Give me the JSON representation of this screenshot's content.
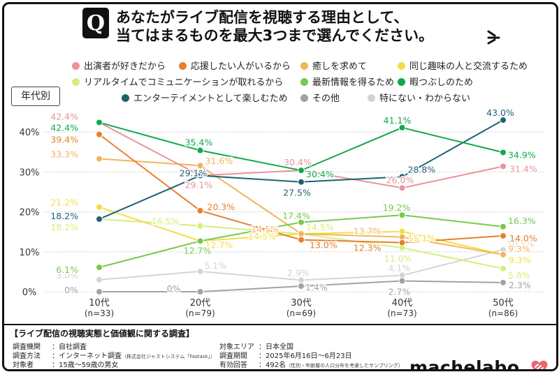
{
  "title": {
    "q_mark": "Q",
    "line1": "あなたがライブ配信を視聴する理由として、",
    "line2": "当てはまるものを最大3つまで選んでください。"
  },
  "badge": "年代別",
  "legend": [
    {
      "label": "出演者が好きだから",
      "color": "#e8949a"
    },
    {
      "label": "応援したい人がいるから",
      "color": "#e87f2e"
    },
    {
      "label": "癒しを求めて",
      "color": "#f2b45a"
    },
    {
      "label": "同じ趣味の人と交流するため",
      "color": "#f5dc45"
    },
    {
      "label": "リアルタイムでコミュニケーションが取れるから",
      "color": "#d4ef7a"
    },
    {
      "label": "最新情報を得るため",
      "color": "#77c94a"
    },
    {
      "label": "暇つぶしのため",
      "color": "#12a84a"
    },
    {
      "label": "エンターテイメントとして楽しむため",
      "color": "#1e6272"
    },
    {
      "label": "その他",
      "color": "#a2a2a2"
    },
    {
      "label": "特にない・わからない",
      "color": "#d4d4d4"
    }
  ],
  "chart_data": {
    "type": "line",
    "categories": [
      "10代",
      "20代",
      "30代",
      "40代",
      "50代"
    ],
    "category_sublabels": [
      "(n=33)",
      "(n=79)",
      "(n=69)",
      "(n=73)",
      "(n=86)"
    ],
    "ylim": [
      0,
      45
    ],
    "yticks": [
      0,
      10,
      20,
      30,
      40
    ],
    "ytick_labels": [
      "0%",
      "10%",
      "20%",
      "30%",
      "40%"
    ],
    "grid": true,
    "series": [
      {
        "name": "出演者が好きだから",
        "color": "#e8949a",
        "values": [
          42.4,
          29.1,
          30.4,
          26.0,
          31.4
        ],
        "labels": [
          "42.4%",
          "29.1%",
          "30.4%",
          "26.0%",
          "31.4%"
        ]
      },
      {
        "name": "応援したい人がいるから",
        "color": "#e87f2e",
        "values": [
          39.4,
          20.3,
          13.0,
          12.3,
          14.0
        ],
        "labels": [
          "39.4%",
          "20.3%",
          "13.0%",
          "12.3%",
          "14.0%"
        ]
      },
      {
        "name": "癒しを求めて",
        "color": "#f2b45a",
        "values": [
          33.3,
          31.6,
          14.5,
          13.7,
          9.3
        ],
        "labels": [
          "33.3%",
          "31.6%",
          "14.5%",
          "13.7%",
          "9.3%"
        ]
      },
      {
        "name": "同じ趣味の人と交流するため",
        "color": "#f5dc45",
        "values": [
          21.2,
          12.7,
          14.5,
          15.1,
          9.3
        ],
        "labels": [
          "21.2%",
          "12.7%",
          "14.5%",
          "15.1%",
          "9.3%"
        ]
      },
      {
        "name": "リアルタイムでコミュニケーションが取れるから",
        "color": "#d4ef7a",
        "values": [
          18.2,
          16.5,
          14.5,
          11.0,
          5.8
        ],
        "labels": [
          "18.2%",
          "16.5%",
          "14.5%",
          "11.0%",
          "5.8%"
        ]
      },
      {
        "name": "最新情報を得るため",
        "color": "#77c94a",
        "values": [
          6.1,
          12.7,
          17.4,
          19.2,
          16.3
        ],
        "labels": [
          "6.1%",
          "12.7%",
          "17.4%",
          "19.2%",
          "16.3%"
        ]
      },
      {
        "name": "暇つぶしのため",
        "color": "#12a84a",
        "values": [
          42.4,
          35.4,
          30.4,
          41.1,
          34.9
        ],
        "labels": [
          "42.4%",
          "35.4%",
          "30.4%",
          "41.1%",
          "34.9%"
        ]
      },
      {
        "name": "エンターテイメントとして楽しむため",
        "color": "#1e6272",
        "values": [
          18.2,
          29.1,
          27.5,
          28.8,
          43.0
        ],
        "labels": [
          "18.2%",
          "29.1%",
          "27.5%",
          "28.8%",
          "43.0%"
        ]
      },
      {
        "name": "その他",
        "color": "#a2a2a2",
        "values": [
          0,
          0,
          1.4,
          2.7,
          2.3
        ],
        "labels": [
          "0%",
          "0%",
          "1.4%",
          "2.7%",
          "2.3%"
        ]
      },
      {
        "name": "特にない・わからない",
        "color": "#d4d4d4",
        "values": [
          3.0,
          5.1,
          2.9,
          4.1,
          10.5
        ],
        "labels": [
          "3.0%",
          "5.1%",
          "2.9%",
          "4.1%",
          "10.5%"
        ]
      }
    ]
  },
  "footer": {
    "title": "【ライブ配信の視聴実態と価値観に関する調査】",
    "rows": [
      {
        "key": "調査機関",
        "value": "：自社調査",
        "note": ""
      },
      {
        "key": "調査方法",
        "value": "：インターネット調査",
        "note": "（株式会社ジャストシステム「Fastask」）"
      },
      {
        "key": "対象者",
        "value": "：15歳～59歳の男女",
        "note": ""
      },
      {
        "key": "対象エリア",
        "value": "：日本全国",
        "note": ""
      },
      {
        "key": "調査期間",
        "value": "：2025年6月16日～6月23日",
        "note": ""
      },
      {
        "key": "有効回答",
        "value": "：492名",
        "note": "（性別・年齢層の人口分布を考慮したサンプリング）"
      }
    ],
    "brand": "machelabo"
  }
}
